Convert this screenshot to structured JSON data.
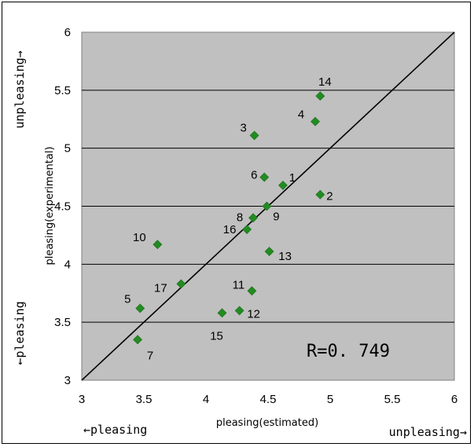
{
  "chart_data": {
    "type": "scatter",
    "title": "",
    "xlabel": "pleasing(estimated)",
    "ylabel": "pleasing(experimental)",
    "xlim": [
      3,
      6
    ],
    "ylim": [
      3,
      6
    ],
    "xticks": [
      "3",
      "3.5",
      "4",
      "4.5",
      "5",
      "5.5",
      "6"
    ],
    "yticks": [
      "3",
      "3.5",
      "4",
      "4.5",
      "5",
      "5.5",
      "6"
    ],
    "grid": "horizontal",
    "background_color": "#C0C0C0",
    "marker_color": "#228B22",
    "marker": "diamond",
    "reference_line": {
      "from": [
        3,
        3
      ],
      "to": [
        6,
        6
      ]
    },
    "points": [
      {
        "label": "1",
        "x": 4.62,
        "y": 4.68
      },
      {
        "label": "2",
        "x": 4.92,
        "y": 4.6
      },
      {
        "label": "3",
        "x": 4.39,
        "y": 5.11
      },
      {
        "label": "4",
        "x": 4.88,
        "y": 5.23
      },
      {
        "label": "5",
        "x": 3.47,
        "y": 3.62
      },
      {
        "label": "6",
        "x": 4.47,
        "y": 4.75
      },
      {
        "label": "7",
        "x": 3.45,
        "y": 3.35
      },
      {
        "label": "8",
        "x": 4.38,
        "y": 4.4
      },
      {
        "label": "9",
        "x": 4.49,
        "y": 4.5
      },
      {
        "label": "10",
        "x": 3.61,
        "y": 4.17
      },
      {
        "label": "11",
        "x": 4.37,
        "y": 3.77
      },
      {
        "label": "12",
        "x": 4.27,
        "y": 3.6
      },
      {
        "label": "13",
        "x": 4.51,
        "y": 4.11
      },
      {
        "label": "14",
        "x": 4.92,
        "y": 5.45
      },
      {
        "label": "15",
        "x": 4.13,
        "y": 3.58
      },
      {
        "label": "16",
        "x": 4.33,
        "y": 4.3
      },
      {
        "label": "17",
        "x": 3.8,
        "y": 3.83
      }
    ],
    "annotation": "R=0. 749"
  },
  "corner_labels": {
    "x_left": "←pleasing",
    "x_right": "unpleasing→",
    "y_top": "unpleasing→",
    "y_bottom": "←pleasing"
  }
}
